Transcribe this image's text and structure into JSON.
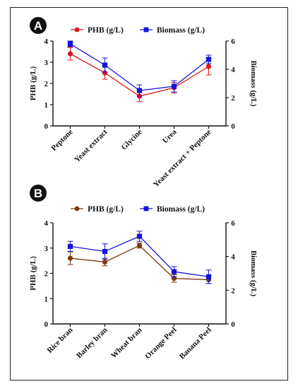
{
  "chart_data": [
    {
      "type": "line",
      "panel_label": "A",
      "categories": [
        "Peptone",
        "Yeast extract",
        "Glycine",
        "Urea",
        "Yeast extract + Peptone"
      ],
      "series": [
        {
          "name": "PHB (g/L)",
          "axis": "left",
          "color": "#e0141c",
          "marker": "circle",
          "values": [
            3.4,
            2.5,
            1.4,
            1.8,
            2.8
          ],
          "errors": [
            0.3,
            0.3,
            0.25,
            0.25,
            0.4
          ]
        },
        {
          "name": "Biomass (g/L)",
          "axis": "right",
          "color": "#1414d8",
          "marker": "square",
          "values": [
            5.8,
            4.3,
            2.5,
            2.8,
            4.7
          ],
          "errors": [
            0.2,
            0.5,
            0.4,
            0.4,
            0.3
          ]
        }
      ],
      "ylabel_left": "PHB (g/L)",
      "ylim_left": [
        0,
        4
      ],
      "yticks_left": [
        "0",
        "1",
        "2",
        "3",
        "4"
      ],
      "ylabel_right": "Biomass (g/L)",
      "ylim_right": [
        0,
        6
      ],
      "yticks_right": [
        "0",
        "2",
        "4",
        "6"
      ],
      "legend": "top"
    },
    {
      "type": "line",
      "panel_label": "B",
      "categories": [
        "Rice bran",
        "Barley bran",
        "Wheat bran",
        "Orange Peel",
        "Banana Peel"
      ],
      "series": [
        {
          "name": "PHB (g/L)",
          "axis": "left",
          "color": "#7a3a14",
          "marker": "circle",
          "values": [
            2.6,
            2.45,
            3.1,
            1.8,
            1.75
          ],
          "errors": [
            0.25,
            0.15,
            0.1,
            0.15,
            0.15
          ]
        },
        {
          "name": "Biomass (g/L)",
          "axis": "right",
          "color": "#1414d8",
          "marker": "square",
          "values": [
            4.6,
            4.3,
            5.2,
            3.1,
            2.8
          ],
          "errors": [
            0.3,
            0.45,
            0.3,
            0.3,
            0.4
          ]
        }
      ],
      "ylabel_left": "PHB (g/L)",
      "ylim_left": [
        0,
        4
      ],
      "yticks_left": [
        "0",
        "1",
        "2",
        "3",
        "4"
      ],
      "ylabel_right": "Biomass (g/L)",
      "ylim_right": [
        0,
        6
      ],
      "yticks_right": [
        "0",
        "2",
        "4",
        "6"
      ],
      "legend": "top"
    }
  ]
}
